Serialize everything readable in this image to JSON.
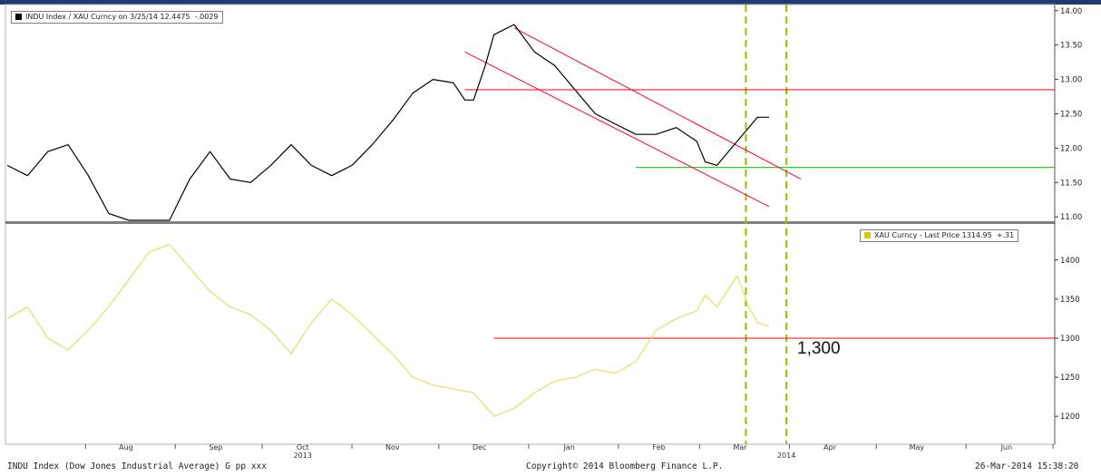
{
  "chart_data": [
    {
      "type": "line",
      "legend": {
        "series_label": "INDU Index / XAU Curncy on 3/25/14",
        "last_value": "12.4475",
        "change": "-.0029",
        "placement": "top-left"
      },
      "yticks": [
        "14.00",
        "13.50",
        "13.00",
        "12.50",
        "12.00",
        "11.50",
        "11.00"
      ],
      "ylim": [
        10.95,
        14.05
      ],
      "series": [
        {
          "color": "#000000",
          "x": [
            "2013-07-05",
            "2013-07-12",
            "2013-07-19",
            "2013-07-26",
            "2013-08-02",
            "2013-08-09",
            "2013-08-16",
            "2013-08-23",
            "2013-08-27",
            "2013-08-30",
            "2013-09-06",
            "2013-09-13",
            "2013-09-20",
            "2013-09-27",
            "2013-10-04",
            "2013-10-11",
            "2013-10-18",
            "2013-10-25",
            "2013-11-01",
            "2013-11-08",
            "2013-11-15",
            "2013-11-22",
            "2013-11-29",
            "2013-12-06",
            "2013-12-10",
            "2013-12-13",
            "2013-12-17",
            "2013-12-20",
            "2013-12-27",
            "2014-01-03",
            "2014-01-10",
            "2014-01-17",
            "2014-01-24",
            "2014-01-31",
            "2014-02-07",
            "2014-02-14",
            "2014-02-21",
            "2014-02-28",
            "2014-03-03",
            "2014-03-07",
            "2014-03-14",
            "2014-03-18",
            "2014-03-21",
            "2014-03-25"
          ],
          "y": [
            11.75,
            11.6,
            11.95,
            12.05,
            11.6,
            11.05,
            10.95,
            10.95,
            10.92,
            10.9,
            11.55,
            11.95,
            11.55,
            11.5,
            11.75,
            12.05,
            11.75,
            11.6,
            11.75,
            12.05,
            12.4,
            12.8,
            13.0,
            12.95,
            12.7,
            12.7,
            13.2,
            13.65,
            13.8,
            13.4,
            13.2,
            12.85,
            12.5,
            12.35,
            12.2,
            12.2,
            12.3,
            12.1,
            11.8,
            11.75,
            12.1,
            12.3,
            12.45,
            12.45
          ]
        }
      ],
      "annotations": [
        {
          "type": "hline",
          "y": 12.85,
          "x_from": "2013-12-10",
          "color": "#ff0000"
        },
        {
          "type": "hline",
          "y": 11.72,
          "x_from": "2014-02-07",
          "color": "#00cc00"
        },
        {
          "type": "channel-line",
          "from": [
            "2013-12-10",
            13.4
          ],
          "to": [
            "2014-03-25",
            11.15
          ],
          "color": "#ff0033"
        },
        {
          "type": "channel-line",
          "from": [
            "2013-12-27",
            13.75
          ],
          "to": [
            "2014-04-05",
            11.55
          ],
          "color": "#ff0033"
        }
      ]
    },
    {
      "type": "line",
      "legend": {
        "series_label": "XAU Curncy - Last Price",
        "last_value": "1314.95",
        "change": "+.31",
        "placement": "top-right"
      },
      "yticks": [
        "1400",
        "1350",
        "1300",
        "1250",
        "1200"
      ],
      "ylim": [
        1170,
        1445
      ],
      "series": [
        {
          "color": "#e6e070",
          "x": [
            "2013-07-05",
            "2013-07-12",
            "2013-07-19",
            "2013-07-26",
            "2013-08-02",
            "2013-08-09",
            "2013-08-16",
            "2013-08-23",
            "2013-08-30",
            "2013-09-06",
            "2013-09-13",
            "2013-09-20",
            "2013-09-27",
            "2013-10-04",
            "2013-10-11",
            "2013-10-18",
            "2013-10-25",
            "2013-11-01",
            "2013-11-08",
            "2013-11-15",
            "2013-11-22",
            "2013-11-29",
            "2013-12-06",
            "2013-12-13",
            "2013-12-20",
            "2013-12-27",
            "2014-01-03",
            "2014-01-10",
            "2014-01-17",
            "2014-01-24",
            "2014-01-31",
            "2014-02-07",
            "2014-02-14",
            "2014-02-21",
            "2014-02-28",
            "2014-03-03",
            "2014-03-07",
            "2014-03-14",
            "2014-03-18",
            "2014-03-21",
            "2014-03-25"
          ],
          "y": [
            1325,
            1340,
            1300,
            1285,
            1310,
            1340,
            1375,
            1410,
            1420,
            1390,
            1360,
            1340,
            1330,
            1310,
            1280,
            1320,
            1350,
            1330,
            1305,
            1280,
            1250,
            1240,
            1235,
            1230,
            1200,
            1210,
            1230,
            1245,
            1250,
            1260,
            1255,
            1270,
            1310,
            1325,
            1335,
            1355,
            1340,
            1380,
            1340,
            1320,
            1315
          ]
        }
      ],
      "annotations": [
        {
          "type": "hline",
          "y": 1300,
          "x_from": "2013-12-20",
          "label": "1,300",
          "color": "#ff0000"
        }
      ]
    }
  ],
  "x_axis": {
    "months": [
      {
        "label": "Aug",
        "date": "2013-08-15"
      },
      {
        "label": "Sep",
        "date": "2013-09-15"
      },
      {
        "label": "Oct",
        "date": "2013-10-15"
      },
      {
        "label": "Nov",
        "date": "2013-11-15"
      },
      {
        "label": "Dec",
        "date": "2013-12-15"
      },
      {
        "label": "Jan",
        "date": "2014-01-15"
      },
      {
        "label": "Feb",
        "date": "2014-02-15"
      },
      {
        "label": "Mar",
        "date": "2014-03-15"
      },
      {
        "label": "Apr",
        "date": "2014-04-15"
      },
      {
        "label": "May",
        "date": "2014-05-15"
      },
      {
        "label": "Jun",
        "date": "2014-06-15"
      }
    ],
    "years": [
      {
        "label": "2013",
        "date": "2013-10-15"
      },
      {
        "label": "2014",
        "date": "2014-03-31"
      }
    ],
    "vlines": [
      "2014-03-17",
      "2014-03-31"
    ]
  },
  "footer": {
    "left": "INDU Index (Dow Jones Industrial Average) G pp xxx",
    "center": "Copyright© 2014 Bloomberg Finance L.P.",
    "right": "26-Mar-2014 15:38:20"
  },
  "colors": {
    "ratio_line": "#000000",
    "gold_line": "#e6e070",
    "resistance": "#ff0000",
    "support": "#00cc00",
    "channel": "#ff0033",
    "vlines": "#99bb00",
    "header_bar": "#1f3b73"
  }
}
